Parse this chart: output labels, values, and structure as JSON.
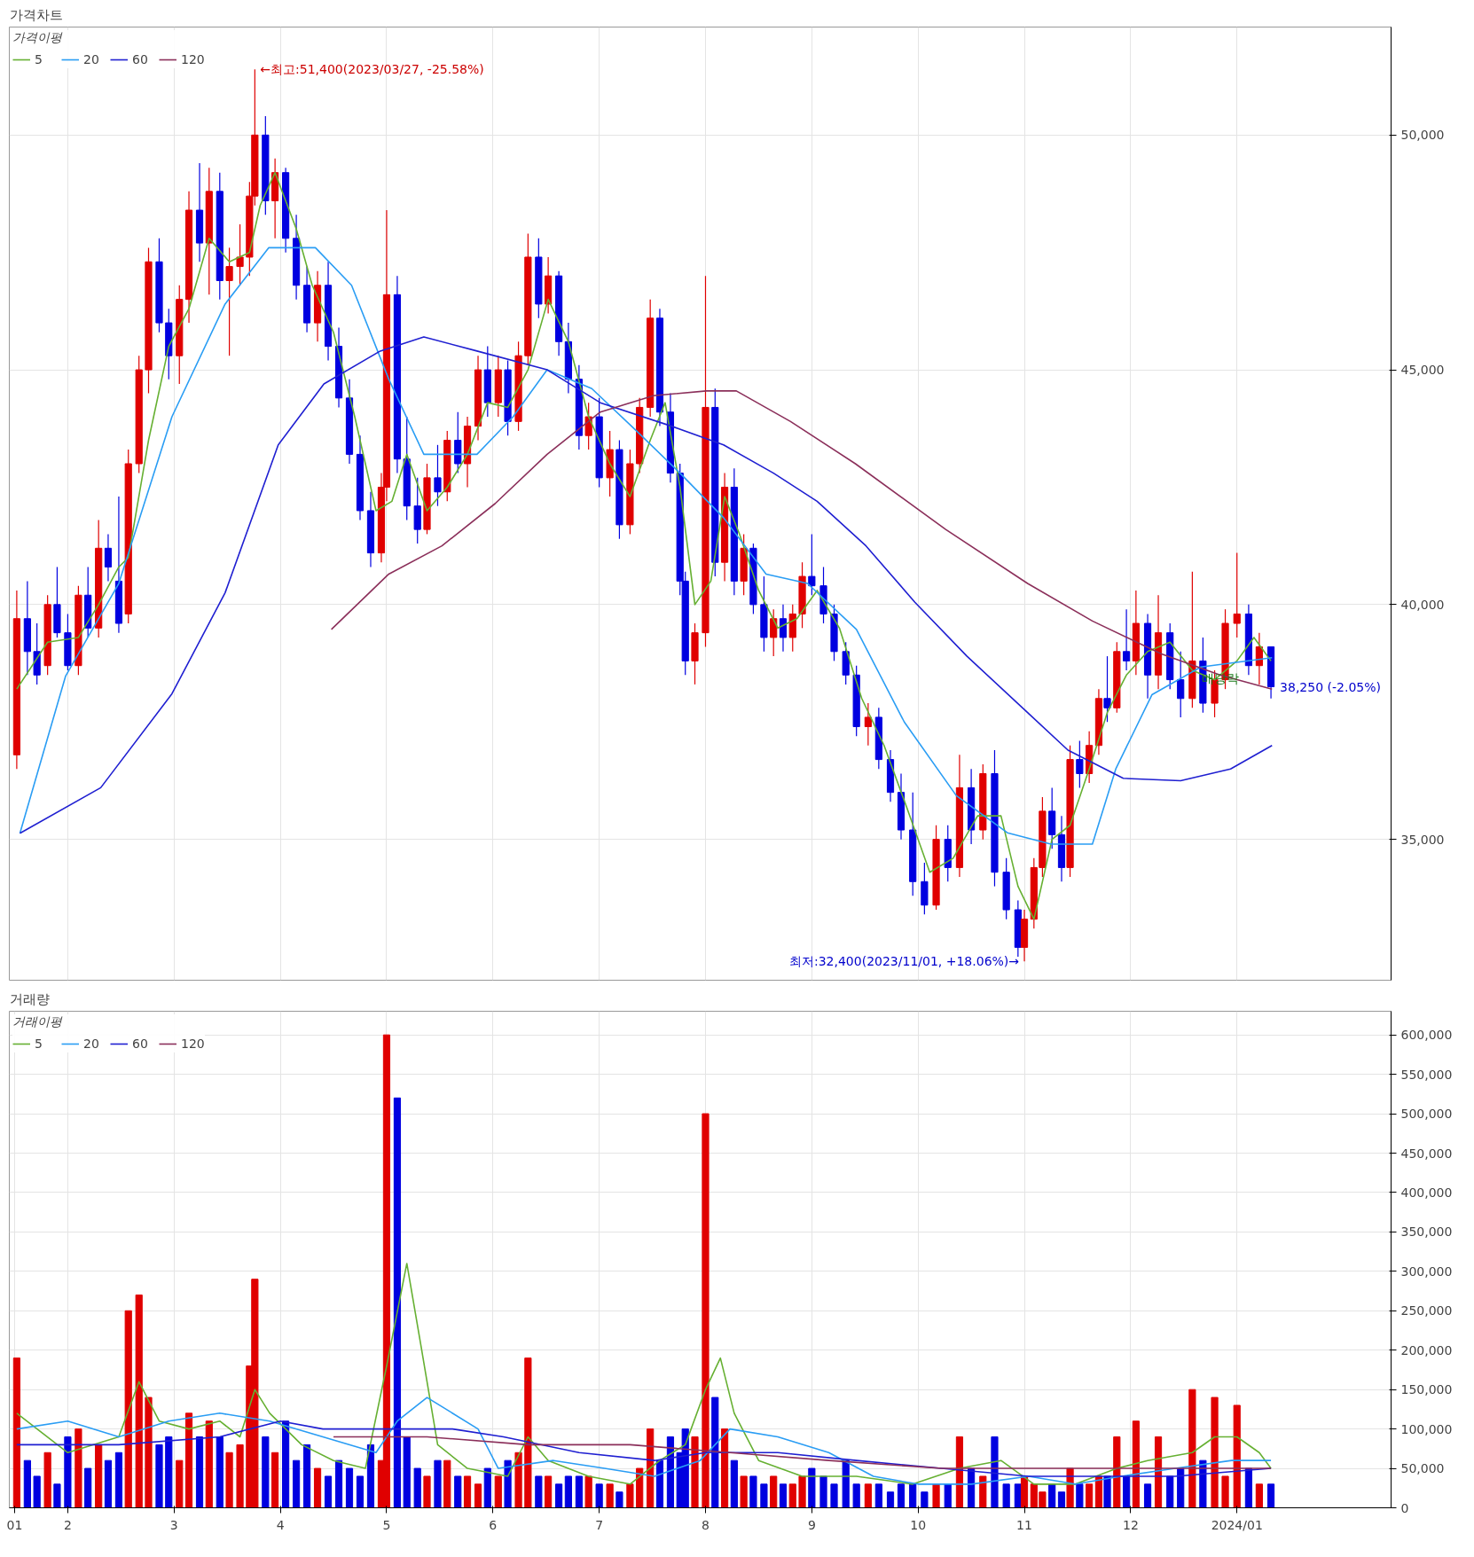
{
  "chart_data": [
    {
      "type": "candlestick",
      "title": "가격차트",
      "legend_title": "가격이평",
      "legend": "top left",
      "grid": true,
      "tick_labels": "y",
      "xlim": [
        1.45,
        14.45
      ],
      "ylim": [
        32000,
        52300
      ],
      "xticks": [
        {
          "value": 2,
          "label": null
        },
        {
          "value": 3,
          "label": null
        },
        {
          "value": 4,
          "label": null
        },
        {
          "value": 5,
          "label": null
        },
        {
          "value": 6,
          "label": null
        },
        {
          "value": 7,
          "label": null
        },
        {
          "value": 8,
          "label": null
        },
        {
          "value": 9,
          "label": null
        },
        {
          "value": 10,
          "label": null
        },
        {
          "value": 11,
          "label": null
        },
        {
          "value": 12,
          "label": null
        },
        {
          "value": 13,
          "label": null
        }
      ],
      "yticks": [
        {
          "value": 35000,
          "label": "35,000"
        },
        {
          "value": 40000,
          "label": "40,000"
        },
        {
          "value": 45000,
          "label": "45,000"
        },
        {
          "value": 50000,
          "label": "50,000"
        }
      ],
      "x": [
        1.52,
        1.62,
        1.71,
        1.81,
        1.9,
        2.0,
        2.1,
        2.19,
        2.29,
        2.38,
        2.48,
        2.57,
        2.67,
        2.76,
        2.86,
        2.95,
        3.05,
        3.14,
        3.24,
        3.33,
        3.43,
        3.52,
        3.62,
        3.71,
        3.76,
        3.86,
        3.95,
        4.05,
        4.15,
        4.25,
        4.35,
        4.45,
        4.55,
        4.65,
        4.75,
        4.85,
        4.95,
        5.0,
        5.1,
        5.19,
        5.29,
        5.38,
        5.48,
        5.57,
        5.67,
        5.76,
        5.86,
        5.95,
        6.05,
        6.14,
        6.24,
        6.33,
        6.43,
        6.52,
        6.62,
        6.71,
        6.81,
        6.9,
        7.0,
        7.1,
        7.19,
        7.29,
        7.38,
        7.48,
        7.57,
        7.67,
        7.76,
        7.81,
        7.9,
        8.0,
        8.09,
        8.18,
        8.27,
        8.36,
        8.45,
        8.55,
        8.64,
        8.73,
        8.82,
        8.91,
        9.0,
        9.11,
        9.21,
        9.32,
        9.42,
        9.53,
        9.63,
        9.74,
        9.84,
        9.95,
        10.06,
        10.17,
        10.28,
        10.39,
        10.5,
        10.61,
        10.72,
        10.83,
        10.94,
        11.0,
        11.09,
        11.17,
        11.26,
        11.35,
        11.43,
        11.52,
        11.61,
        11.7,
        11.78,
        11.87,
        11.96,
        12.05,
        12.16,
        12.26,
        12.37,
        12.47,
        12.58,
        12.68,
        12.79,
        12.89,
        13.0,
        13.11,
        13.21,
        13.32
      ],
      "ohlc": [
        [
          36800,
          40300,
          36500,
          39700
        ],
        [
          39700,
          40500,
          38500,
          39000
        ],
        [
          39000,
          39600,
          38300,
          38500
        ],
        [
          38700,
          40200,
          38500,
          40000
        ],
        [
          40000,
          40800,
          39300,
          39400
        ],
        [
          39400,
          39800,
          38600,
          38700
        ],
        [
          38700,
          40400,
          38500,
          40200
        ],
        [
          40200,
          40800,
          39300,
          39500
        ],
        [
          39500,
          41800,
          39300,
          41200
        ],
        [
          41200,
          41500,
          40500,
          40800
        ],
        [
          40500,
          42300,
          39400,
          39600
        ],
        [
          39800,
          43300,
          39600,
          43000
        ],
        [
          43000,
          45300,
          42800,
          45000
        ],
        [
          45000,
          47600,
          44500,
          47300
        ],
        [
          47300,
          47800,
          45800,
          46000
        ],
        [
          46000,
          46300,
          44800,
          45300
        ],
        [
          45300,
          46800,
          44700,
          46500
        ],
        [
          46500,
          48800,
          46000,
          48400
        ],
        [
          48400,
          49400,
          47300,
          47700
        ],
        [
          47700,
          49300,
          46600,
          48800
        ],
        [
          48800,
          49200,
          46500,
          46900
        ],
        [
          46900,
          47600,
          45300,
          47200
        ],
        [
          47200,
          48100,
          46800,
          47400
        ],
        [
          47400,
          49000,
          47000,
          48700
        ],
        [
          48700,
          51400,
          48500,
          50000
        ],
        [
          50000,
          50400,
          48300,
          48600
        ],
        [
          48600,
          49500,
          47800,
          49200
        ],
        [
          49200,
          49300,
          47500,
          47800
        ],
        [
          47800,
          48300,
          46500,
          46800
        ],
        [
          46800,
          47200,
          45800,
          46000
        ],
        [
          46000,
          47100,
          45600,
          46800
        ],
        [
          46800,
          47300,
          45200,
          45500
        ],
        [
          45500,
          45900,
          44200,
          44400
        ],
        [
          44400,
          44800,
          43000,
          43200
        ],
        [
          43200,
          43600,
          41800,
          42000
        ],
        [
          42000,
          42400,
          40800,
          41100
        ],
        [
          41100,
          42800,
          40900,
          42500
        ],
        [
          42500,
          48400,
          42200,
          46600
        ],
        [
          46600,
          47000,
          42800,
          43100
        ],
        [
          43100,
          44000,
          41800,
          42100
        ],
        [
          42100,
          42700,
          41300,
          41600
        ],
        [
          41600,
          43000,
          41500,
          42700
        ],
        [
          42700,
          43400,
          42100,
          42400
        ],
        [
          42400,
          43700,
          42200,
          43500
        ],
        [
          43500,
          44100,
          42800,
          43000
        ],
        [
          43000,
          44000,
          42500,
          43800
        ],
        [
          43800,
          45300,
          43500,
          45000
        ],
        [
          45000,
          45500,
          44000,
          44300
        ],
        [
          44300,
          45300,
          44000,
          45000
        ],
        [
          45000,
          45200,
          43600,
          43900
        ],
        [
          43900,
          45600,
          43700,
          45300
        ],
        [
          45300,
          47900,
          45100,
          47400
        ],
        [
          47400,
          47800,
          46100,
          46400
        ],
        [
          46400,
          47400,
          46200,
          47000
        ],
        [
          47000,
          47100,
          45300,
          45600
        ],
        [
          45600,
          46000,
          44500,
          44800
        ],
        [
          44800,
          45100,
          43300,
          43600
        ],
        [
          43600,
          44300,
          43300,
          44000
        ],
        [
          44000,
          44400,
          42500,
          42700
        ],
        [
          42700,
          43700,
          42300,
          43300
        ],
        [
          43300,
          43500,
          41400,
          41700
        ],
        [
          41700,
          43300,
          41500,
          43000
        ],
        [
          43000,
          44400,
          42800,
          44200
        ],
        [
          44200,
          46500,
          44000,
          46100
        ],
        [
          46100,
          46300,
          43800,
          44100
        ],
        [
          44100,
          44500,
          42600,
          42800
        ],
        [
          42800,
          43000,
          40200,
          40500
        ],
        [
          40500,
          40700,
          38500,
          38800
        ],
        [
          38800,
          39600,
          38300,
          39400
        ],
        [
          39400,
          47000,
          39100,
          44200
        ],
        [
          44200,
          44600,
          40600,
          40900
        ],
        [
          40900,
          42800,
          40500,
          42500
        ],
        [
          42500,
          42900,
          40200,
          40500
        ],
        [
          40500,
          41500,
          40200,
          41200
        ],
        [
          41200,
          41300,
          39800,
          40000
        ],
        [
          40000,
          40600,
          39000,
          39300
        ],
        [
          39300,
          39900,
          38900,
          39700
        ],
        [
          39700,
          40000,
          39000,
          39300
        ],
        [
          39300,
          40000,
          39000,
          39800
        ],
        [
          39800,
          40900,
          39500,
          40600
        ],
        [
          40600,
          41500,
          40200,
          40400
        ],
        [
          40400,
          40800,
          39600,
          39800
        ],
        [
          39800,
          40000,
          38800,
          39000
        ],
        [
          39000,
          39200,
          38300,
          38500
        ],
        [
          38500,
          38700,
          37200,
          37400
        ],
        [
          37400,
          37900,
          37000,
          37600
        ],
        [
          37600,
          37800,
          36500,
          36700
        ],
        [
          36700,
          36900,
          35800,
          36000
        ],
        [
          36000,
          36400,
          35000,
          35200
        ],
        [
          35200,
          36000,
          33800,
          34100
        ],
        [
          34100,
          34500,
          33400,
          33600
        ],
        [
          33600,
          35300,
          33500,
          35000
        ],
        [
          35000,
          35300,
          34100,
          34400
        ],
        [
          34400,
          36800,
          34200,
          36100
        ],
        [
          36100,
          36500,
          34900,
          35200
        ],
        [
          35200,
          36600,
          35000,
          36400
        ],
        [
          36400,
          36900,
          34000,
          34300
        ],
        [
          34300,
          34600,
          33300,
          33500
        ],
        [
          33500,
          33700,
          32500,
          32700
        ],
        [
          32700,
          33500,
          32400,
          33300
        ],
        [
          33300,
          34600,
          33100,
          34400
        ],
        [
          34400,
          35900,
          34200,
          35600
        ],
        [
          35600,
          36100,
          34800,
          35100
        ],
        [
          35100,
          35500,
          34100,
          34400
        ],
        [
          34400,
          37000,
          34200,
          36700
        ],
        [
          36700,
          37100,
          36100,
          36400
        ],
        [
          36400,
          37300,
          36200,
          37000
        ],
        [
          37000,
          38200,
          36800,
          38000
        ],
        [
          38000,
          38900,
          37500,
          37800
        ],
        [
          37800,
          39200,
          37700,
          39000
        ],
        [
          39000,
          39900,
          38600,
          38800
        ],
        [
          38800,
          40300,
          38500,
          39600
        ],
        [
          39600,
          39800,
          38000,
          38500
        ],
        [
          38500,
          40200,
          38200,
          39400
        ],
        [
          39400,
          39600,
          38200,
          38400
        ],
        [
          38400,
          39000,
          37600,
          38000
        ],
        [
          38000,
          40700,
          37800,
          38800
        ],
        [
          38800,
          39300,
          37700,
          37900
        ],
        [
          37900,
          38600,
          37600,
          38400
        ],
        [
          38400,
          39900,
          38200,
          39600
        ],
        [
          39600,
          41100,
          39300,
          39800
        ],
        [
          39800,
          40000,
          38500,
          38700
        ],
        [
          38700,
          39400,
          38300,
          39100
        ],
        [
          39100,
          39100,
          38000,
          38250
        ]
      ],
      "colors": [
        "#e00000",
        "#0000e0",
        "#0000e0",
        "#e00000",
        "#0000e0",
        "#0000e0",
        "#e00000",
        "#0000e0",
        "#e00000",
        "#0000e0",
        "#0000e0",
        "#e00000",
        "#e00000",
        "#e00000",
        "#0000e0",
        "#0000e0",
        "#e00000",
        "#e00000",
        "#0000e0",
        "#e00000",
        "#0000e0",
        "#e00000",
        "#e00000",
        "#e00000",
        "#e00000",
        "#0000e0",
        "#e00000",
        "#0000e0",
        "#0000e0",
        "#0000e0",
        "#e00000",
        "#0000e0",
        "#0000e0",
        "#0000e0",
        "#0000e0",
        "#0000e0",
        "#e00000",
        "#e00000",
        "#0000e0",
        "#0000e0",
        "#0000e0",
        "#e00000",
        "#0000e0",
        "#e00000",
        "#0000e0",
        "#e00000",
        "#e00000",
        "#0000e0",
        "#e00000",
        "#0000e0",
        "#e00000",
        "#e00000",
        "#0000e0",
        "#e00000",
        "#0000e0",
        "#0000e0",
        "#0000e0",
        "#e00000",
        "#0000e0",
        "#e00000",
        "#0000e0",
        "#e00000",
        "#e00000",
        "#e00000",
        "#0000e0",
        "#0000e0",
        "#0000e0",
        "#0000e0",
        "#e00000",
        "#e00000",
        "#0000e0",
        "#e00000",
        "#0000e0",
        "#e00000",
        "#0000e0",
        "#0000e0",
        "#e00000",
        "#0000e0",
        "#e00000",
        "#e00000",
        "#0000e0",
        "#0000e0",
        "#0000e0",
        "#0000e0",
        "#0000e0",
        "#e00000",
        "#0000e0",
        "#0000e0",
        "#0000e0",
        "#0000e0",
        "#0000e0",
        "#e00000",
        "#0000e0",
        "#e00000",
        "#0000e0",
        "#e00000",
        "#0000e0",
        "#0000e0",
        "#0000e0",
        "#e00000",
        "#e00000",
        "#e00000",
        "#0000e0",
        "#0000e0",
        "#e00000",
        "#0000e0",
        "#e00000",
        "#e00000",
        "#0000e0",
        "#e00000",
        "#0000e0",
        "#e00000",
        "#0000e0",
        "#e00000",
        "#0000e0",
        "#0000e0",
        "#e00000",
        "#0000e0",
        "#e00000",
        "#e00000",
        "#e00000",
        "#0000e0",
        "#e00000",
        "#0000e0"
      ],
      "series": [
        {
          "name": "5",
          "type": "line",
          "color": "#66b032",
          "x": [
            1.52,
            1.81,
            2.1,
            2.29,
            2.48,
            2.57,
            2.76,
            2.95,
            3.14,
            3.33,
            3.52,
            3.71,
            3.81,
            3.95,
            4.15,
            4.3,
            4.5,
            4.7,
            4.9,
            5.05,
            5.19,
            5.38,
            5.57,
            5.76,
            5.95,
            6.14,
            6.33,
            6.52,
            6.71,
            6.9,
            7.1,
            7.29,
            7.48,
            7.62,
            7.76,
            7.9,
            8.05,
            8.18,
            8.32,
            8.5,
            8.68,
            8.86,
            9.05,
            9.26,
            9.47,
            9.68,
            9.89,
            10.11,
            10.33,
            10.56,
            10.78,
            10.94,
            11.09,
            11.26,
            11.43,
            11.61,
            11.78,
            11.96,
            12.16,
            12.37,
            12.58,
            12.79,
            13.0,
            13.16,
            13.32
          ],
          "values": [
            38200,
            39200,
            39300,
            40000,
            40800,
            41000,
            43500,
            45500,
            46300,
            47800,
            47300,
            47500,
            48500,
            49200,
            48000,
            46800,
            45800,
            44000,
            42000,
            42200,
            43200,
            42000,
            42500,
            43200,
            44300,
            44200,
            45000,
            46500,
            45600,
            44000,
            43000,
            42300,
            43500,
            44300,
            42500,
            40000,
            40500,
            42300,
            41500,
            40300,
            39500,
            39700,
            40300,
            39500,
            38000,
            37000,
            35700,
            34300,
            34600,
            35500,
            35500,
            34000,
            33300,
            35000,
            35300,
            36500,
            37700,
            38500,
            39000,
            39200,
            38600,
            38400,
            38800,
            39300,
            38800
          ]
        },
        {
          "name": "20",
          "type": "line",
          "color": "#2a9df4",
          "x": [
            1.55,
            1.98,
            2.48,
            2.98,
            3.48,
            3.89,
            4.33,
            4.67,
            5.02,
            5.35,
            5.85,
            6.19,
            6.51,
            6.93,
            7.35,
            7.76,
            8.17,
            8.57,
            8.96,
            9.42,
            9.87,
            10.36,
            10.84,
            11.25,
            11.64,
            11.86,
            12.2,
            12.66,
            13.33
          ],
          "values": [
            35130,
            38480,
            40450,
            44000,
            46400,
            47600,
            47600,
            46800,
            44800,
            43200,
            43200,
            44000,
            45000,
            44600,
            43700,
            42800,
            41850,
            40650,
            40450,
            39470,
            37500,
            35930,
            35140,
            34900,
            34900,
            36500,
            38080,
            38670,
            38870
          ]
        },
        {
          "name": "60",
          "type": "line",
          "color": "#1f1fd1",
          "x": [
            1.55,
            2.31,
            2.98,
            3.48,
            3.98,
            4.41,
            4.94,
            5.35,
            5.85,
            6.51,
            7.01,
            7.68,
            8.17,
            8.64,
            9.05,
            9.51,
            9.97,
            10.46,
            11.03,
            11.41,
            11.93,
            12.47,
            12.94,
            13.33
          ],
          "values": [
            35130,
            36100,
            38100,
            40250,
            43400,
            44700,
            45400,
            45700,
            45400,
            45000,
            44300,
            43800,
            43400,
            42800,
            42200,
            41250,
            40050,
            38900,
            37700,
            36900,
            36300,
            36250,
            36500,
            37000
          ]
        },
        {
          "name": "120",
          "type": "line",
          "color": "#8b2f5a",
          "x": [
            4.48,
            5.02,
            5.52,
            6.02,
            6.51,
            7.01,
            7.51,
            8.01,
            8.29,
            8.8,
            9.41,
            10.26,
            11.03,
            11.64,
            12.29,
            12.84,
            13.33
          ],
          "values": [
            39470,
            40650,
            41250,
            42150,
            43200,
            44100,
            44450,
            44550,
            44550,
            43900,
            43000,
            41600,
            40450,
            39650,
            38950,
            38500,
            38200
          ]
        }
      ],
      "annotations": [
        {
          "text": "←최고:51,400(2023/03/27, -25.58%)",
          "x": 3.76,
          "y": 51400
        },
        {
          "text": "최저:32,400(2023/11/01, +18.06%)→",
          "x": 11.0,
          "y": 32400
        },
        {
          "text": "38,250 (-2.05%)",
          "x": 13.32,
          "y": 38250
        },
        "배당락"
      ]
    },
    {
      "type": "bar",
      "title": "거래량",
      "legend_title": "거래이평",
      "legend": "top left",
      "grid": true,
      "xlim": [
        1.45,
        14.45
      ],
      "ylim": [
        0,
        630000
      ],
      "xticks": [
        {
          "value": 1.5,
          "label": "01"
        },
        2,
        3,
        4,
        5,
        6,
        7,
        8,
        9,
        10,
        11,
        12,
        {
          "value": 13,
          "label": "2024/01"
        }
      ],
      "yticks": [
        {
          "value": 0,
          "label": "0"
        },
        {
          "value": 50000,
          "label": "50,000"
        },
        {
          "value": 100000,
          "label": "100,000"
        },
        {
          "value": 150000,
          "label": "150,000"
        },
        {
          "value": 200000,
          "label": "200,000"
        },
        {
          "value": 250000,
          "label": "250,000"
        },
        {
          "value": 300000,
          "label": "300,000"
        },
        {
          "value": 350000,
          "label": "350,000"
        },
        {
          "value": 400000,
          "label": "400,000"
        },
        {
          "value": 450000,
          "label": "450,000"
        },
        {
          "value": 500000,
          "label": "500,000"
        },
        {
          "value": 550000,
          "label": "550,000"
        },
        {
          "value": 600000,
          "label": "600,000"
        }
      ],
      "x": [
        1.52,
        1.62,
        1.71,
        1.81,
        1.9,
        2.0,
        2.1,
        2.19,
        2.29,
        2.38,
        2.48,
        2.57,
        2.67,
        2.76,
        2.86,
        2.95,
        3.05,
        3.14,
        3.24,
        3.33,
        3.43,
        3.52,
        3.62,
        3.71,
        3.76,
        3.86,
        3.95,
        4.05,
        4.15,
        4.25,
        4.35,
        4.45,
        4.55,
        4.65,
        4.75,
        4.85,
        4.95,
        5.0,
        5.1,
        5.19,
        5.29,
        5.38,
        5.48,
        5.57,
        5.67,
        5.76,
        5.86,
        5.95,
        6.05,
        6.14,
        6.24,
        6.33,
        6.43,
        6.52,
        6.62,
        6.71,
        6.81,
        6.9,
        7.0,
        7.1,
        7.19,
        7.29,
        7.38,
        7.48,
        7.57,
        7.67,
        7.76,
        7.81,
        7.9,
        8.0,
        8.09,
        8.18,
        8.27,
        8.36,
        8.45,
        8.55,
        8.64,
        8.73,
        8.82,
        8.91,
        9.0,
        9.11,
        9.21,
        9.32,
        9.42,
        9.53,
        9.63,
        9.74,
        9.84,
        9.95,
        10.06,
        10.17,
        10.28,
        10.39,
        10.5,
        10.61,
        10.72,
        10.83,
        10.94,
        11.0,
        11.09,
        11.17,
        11.26,
        11.35,
        11.43,
        11.52,
        11.61,
        11.7,
        11.78,
        11.87,
        11.96,
        12.05,
        12.16,
        12.26,
        12.37,
        12.47,
        12.58,
        12.68,
        12.79,
        12.89,
        13.0,
        13.11,
        13.21,
        13.32
      ],
      "values": [
        190000,
        60000,
        40000,
        70000,
        30000,
        90000,
        100000,
        50000,
        80000,
        60000,
        70000,
        250000,
        270000,
        140000,
        80000,
        90000,
        60000,
        120000,
        90000,
        110000,
        90000,
        70000,
        80000,
        180000,
        290000,
        90000,
        70000,
        110000,
        60000,
        80000,
        50000,
        40000,
        60000,
        50000,
        40000,
        80000,
        60000,
        600000,
        520000,
        90000,
        50000,
        40000,
        60000,
        60000,
        40000,
        40000,
        30000,
        50000,
        40000,
        60000,
        70000,
        190000,
        40000,
        40000,
        30000,
        40000,
        40000,
        40000,
        30000,
        30000,
        20000,
        30000,
        50000,
        100000,
        60000,
        90000,
        70000,
        100000,
        90000,
        500000,
        140000,
        100000,
        60000,
        40000,
        40000,
        30000,
        40000,
        30000,
        30000,
        40000,
        50000,
        40000,
        30000,
        60000,
        30000,
        30000,
        30000,
        20000,
        30000,
        30000,
        20000,
        30000,
        30000,
        90000,
        50000,
        40000,
        90000,
        30000,
        30000,
        40000,
        30000,
        20000,
        30000,
        20000,
        50000,
        30000,
        30000,
        40000,
        40000,
        90000,
        40000,
        110000,
        30000,
        90000,
        40000,
        50000,
        150000,
        60000,
        140000,
        40000,
        130000,
        50000,
        30000,
        30000
      ],
      "colors": [
        "#e00000",
        "#0000e0",
        "#0000e0",
        "#e00000",
        "#0000e0",
        "#0000e0",
        "#e00000",
        "#0000e0",
        "#e00000",
        "#0000e0",
        "#0000e0",
        "#e00000",
        "#e00000",
        "#e00000",
        "#0000e0",
        "#0000e0",
        "#e00000",
        "#e00000",
        "#0000e0",
        "#e00000",
        "#0000e0",
        "#e00000",
        "#e00000",
        "#e00000",
        "#e00000",
        "#0000e0",
        "#e00000",
        "#0000e0",
        "#0000e0",
        "#0000e0",
        "#e00000",
        "#0000e0",
        "#0000e0",
        "#0000e0",
        "#0000e0",
        "#0000e0",
        "#e00000",
        "#e00000",
        "#0000e0",
        "#0000e0",
        "#0000e0",
        "#e00000",
        "#0000e0",
        "#e00000",
        "#0000e0",
        "#e00000",
        "#e00000",
        "#0000e0",
        "#e00000",
        "#0000e0",
        "#e00000",
        "#e00000",
        "#0000e0",
        "#e00000",
        "#0000e0",
        "#0000e0",
        "#0000e0",
        "#e00000",
        "#0000e0",
        "#e00000",
        "#0000e0",
        "#e00000",
        "#e00000",
        "#e00000",
        "#0000e0",
        "#0000e0",
        "#0000e0",
        "#0000e0",
        "#e00000",
        "#e00000",
        "#0000e0",
        "#e00000",
        "#0000e0",
        "#e00000",
        "#0000e0",
        "#0000e0",
        "#e00000",
        "#0000e0",
        "#e00000",
        "#e00000",
        "#0000e0",
        "#0000e0",
        "#0000e0",
        "#0000e0",
        "#0000e0",
        "#e00000",
        "#0000e0",
        "#0000e0",
        "#0000e0",
        "#0000e0",
        "#0000e0",
        "#e00000",
        "#0000e0",
        "#e00000",
        "#0000e0",
        "#e00000",
        "#0000e0",
        "#0000e0",
        "#0000e0",
        "#e00000",
        "#e00000",
        "#e00000",
        "#0000e0",
        "#0000e0",
        "#e00000",
        "#0000e0",
        "#e00000",
        "#e00000",
        "#0000e0",
        "#e00000",
        "#0000e0",
        "#e00000",
        "#0000e0",
        "#e00000",
        "#0000e0",
        "#0000e0",
        "#e00000",
        "#0000e0",
        "#e00000",
        "#e00000",
        "#e00000",
        "#0000e0",
        "#e00000",
        "#0000e0"
      ],
      "series": [
        {
          "name": "5",
          "type": "line",
          "color": "#66b032",
          "x": [
            1.52,
            2.0,
            2.48,
            2.67,
            2.86,
            3.14,
            3.43,
            3.62,
            3.76,
            3.9,
            4.2,
            4.5,
            4.8,
            5.0,
            5.19,
            5.33,
            5.48,
            5.76,
            6.14,
            6.33,
            6.52,
            6.9,
            7.29,
            7.57,
            7.81,
            8.0,
            8.14,
            8.27,
            8.5,
            8.91,
            9.42,
            9.95,
            10.39,
            10.78,
            11.09,
            11.48,
            11.87,
            12.16,
            12.58,
            12.79,
            13.0,
            13.21,
            13.32
          ],
          "values": [
            120000,
            70000,
            90000,
            160000,
            110000,
            100000,
            110000,
            90000,
            150000,
            120000,
            80000,
            60000,
            50000,
            180000,
            310000,
            200000,
            80000,
            50000,
            40000,
            90000,
            60000,
            40000,
            30000,
            60000,
            80000,
            150000,
            190000,
            120000,
            60000,
            40000,
            40000,
            30000,
            50000,
            60000,
            30000,
            30000,
            50000,
            60000,
            70000,
            90000,
            90000,
            70000,
            50000
          ]
        },
        {
          "name": "20",
          "type": "line",
          "color": "#2a9df4",
          "x": [
            1.52,
            2.0,
            2.48,
            2.95,
            3.43,
            3.9,
            4.4,
            4.9,
            5.1,
            5.38,
            5.86,
            6.05,
            6.57,
            7.05,
            7.52,
            7.95,
            8.23,
            8.68,
            9.16,
            9.58,
            10.0,
            10.5,
            11.04,
            11.48,
            11.91,
            12.42,
            12.95,
            13.32
          ],
          "values": [
            100000,
            110000,
            90000,
            110000,
            120000,
            110000,
            90000,
            70000,
            110000,
            140000,
            100000,
            50000,
            60000,
            50000,
            40000,
            60000,
            100000,
            90000,
            70000,
            40000,
            30000,
            30000,
            40000,
            30000,
            40000,
            50000,
            60000,
            60000
          ]
        },
        {
          "name": "60",
          "type": "line",
          "color": "#1f1fd1",
          "x": [
            1.52,
            2.48,
            3.43,
            4.0,
            4.4,
            5.0,
            5.62,
            6.1,
            6.81,
            7.52,
            8.0,
            8.68,
            9.42,
            10.22,
            11.04,
            11.7,
            12.42,
            13.32
          ],
          "values": [
            80000,
            80000,
            90000,
            110000,
            100000,
            100000,
            100000,
            90000,
            70000,
            60000,
            70000,
            70000,
            60000,
            50000,
            40000,
            40000,
            40000,
            50000
          ]
        },
        {
          "name": "120",
          "type": "line",
          "color": "#8b2f5a",
          "x": [
            4.5,
            5.38,
            6.33,
            7.29,
            8.23,
            9.16,
            10.22,
            11.26,
            12.16,
            13.32
          ],
          "values": [
            90000,
            90000,
            80000,
            80000,
            70000,
            60000,
            50000,
            50000,
            50000,
            50000
          ]
        }
      ]
    }
  ]
}
